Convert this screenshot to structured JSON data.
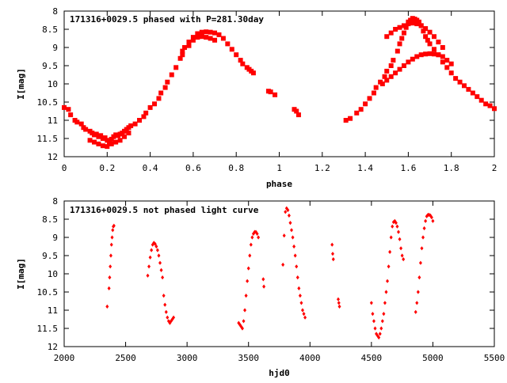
{
  "chart_data": [
    {
      "type": "scatter",
      "title": "171316+0029.5 phased with P=281.30day",
      "xlabel": "phase",
      "ylabel": "I[mag]",
      "xlim": [
        0,
        2
      ],
      "ylim": [
        12,
        8
      ],
      "y_inverted": true,
      "xticks": [
        0,
        0.2,
        0.4,
        0.6,
        0.8,
        1,
        1.2,
        1.4,
        1.6,
        1.8,
        2
      ],
      "xtick_labels": [
        "0",
        "0.2",
        "0.4",
        "0.6",
        "0.8",
        "1",
        "1.2",
        "1.4",
        "1.6",
        "1.8",
        "2"
      ],
      "yticks": [
        8,
        8.5,
        9,
        9.5,
        10,
        10.5,
        11,
        11.5,
        12
      ],
      "ytick_labels": [
        "8",
        "8.5",
        "9",
        "9.5",
        "10",
        "10.5",
        "11",
        "11.5",
        "12"
      ],
      "grid": false,
      "marker": "filled-square",
      "color": "#ff0000",
      "series": [
        {
          "x": [
            0.0,
            0.02,
            0.03,
            0.05,
            0.06,
            0.08,
            0.09,
            0.1,
            0.12,
            0.13,
            0.14,
            0.15,
            0.16,
            0.17,
            0.18,
            0.19,
            0.2,
            0.21,
            0.22,
            0.23,
            0.24,
            0.25,
            0.26,
            0.27,
            0.28,
            0.29,
            0.3,
            0.31,
            0.33,
            0.35,
            0.37,
            0.38,
            0.4,
            0.42,
            0.44,
            0.45,
            0.47,
            0.48,
            0.5,
            0.52,
            0.54,
            0.55,
            0.56,
            0.58,
            0.6,
            0.62,
            0.64,
            0.66,
            0.68,
            0.7,
            0.72,
            0.74,
            0.76,
            0.78,
            0.8,
            0.82,
            0.83,
            0.85,
            0.86,
            0.87,
            0.88,
            0.95,
            0.96,
            0.98,
            1.07,
            1.08,
            1.09,
            1.31,
            1.33,
            1.36,
            1.38,
            1.4,
            1.42,
            1.44,
            1.45,
            1.47,
            1.49,
            1.5,
            1.52,
            1.53,
            1.55,
            1.56,
            1.57,
            1.58,
            1.59,
            1.6,
            1.61,
            1.62,
            1.63,
            1.64,
            1.65,
            1.66,
            1.67,
            1.68,
            1.69,
            1.7,
            1.72,
            1.74,
            1.76,
            1.78,
            1.8,
            1.82,
            1.84,
            1.86,
            1.88,
            1.9,
            1.92,
            1.94,
            1.96,
            1.98,
            2.0
          ],
          "y": [
            10.65,
            10.7,
            10.85,
            11.0,
            11.05,
            11.1,
            11.2,
            11.25,
            11.3,
            11.35,
            11.4,
            11.38,
            11.45,
            11.42,
            11.5,
            11.48,
            11.55,
            11.6,
            11.52,
            11.45,
            11.4,
            11.42,
            11.38,
            11.35,
            11.3,
            11.25,
            11.2,
            11.15,
            11.1,
            11.0,
            10.9,
            10.8,
            10.65,
            10.55,
            10.4,
            10.25,
            10.1,
            9.95,
            9.75,
            9.55,
            9.3,
            9.1,
            9.0,
            8.85,
            8.72,
            8.62,
            8.58,
            8.57,
            8.58,
            8.6,
            8.65,
            8.75,
            8.9,
            9.05,
            9.2,
            9.35,
            9.45,
            9.55,
            9.6,
            9.65,
            9.7,
            10.2,
            10.22,
            10.3,
            10.7,
            10.75,
            10.85,
            11.0,
            10.95,
            10.8,
            10.7,
            10.55,
            10.4,
            10.25,
            10.1,
            9.95,
            9.8,
            9.65,
            9.5,
            9.35,
            9.1,
            8.9,
            8.75,
            8.6,
            8.45,
            8.3,
            8.25,
            8.2,
            8.22,
            8.25,
            8.3,
            8.4,
            8.55,
            8.7,
            8.8,
            8.9,
            9.05,
            9.2,
            9.4,
            9.55,
            9.7,
            9.85,
            9.95,
            10.05,
            10.15,
            10.25,
            10.35,
            10.45,
            10.55,
            10.6,
            10.68
          ]
        },
        {
          "x": [
            0.12,
            0.14,
            0.16,
            0.18,
            0.2,
            0.22,
            0.24,
            0.26,
            0.28,
            0.3,
            0.55,
            0.58,
            0.6,
            0.62,
            0.64,
            0.66,
            0.68,
            0.7,
            1.5,
            1.52,
            1.54,
            1.56,
            1.58,
            1.6,
            1.62,
            1.64,
            1.66,
            1.68,
            1.7,
            1.72,
            1.74,
            1.76
          ],
          "y": [
            11.55,
            11.6,
            11.65,
            11.7,
            11.72,
            11.65,
            11.6,
            11.55,
            11.45,
            11.35,
            9.2,
            8.95,
            8.8,
            8.72,
            8.7,
            8.72,
            8.75,
            8.8,
            8.7,
            8.6,
            8.5,
            8.45,
            8.4,
            8.35,
            8.33,
            8.35,
            8.4,
            8.48,
            8.58,
            8.7,
            8.85,
            9.0
          ]
        },
        {
          "x": [
            1.48,
            1.5,
            1.52,
            1.54,
            1.56,
            1.58,
            1.6,
            1.62,
            1.64,
            1.66,
            1.68,
            1.7,
            1.72,
            1.74,
            1.76,
            1.78,
            1.8
          ],
          "y": [
            10.0,
            9.9,
            9.8,
            9.7,
            9.6,
            9.5,
            9.4,
            9.32,
            9.25,
            9.2,
            9.18,
            9.17,
            9.18,
            9.2,
            9.25,
            9.35,
            9.45
          ]
        }
      ]
    },
    {
      "type": "scatter",
      "title": "171316+0029.5 not phased light curve",
      "xlabel": "hjd0",
      "ylabel": "I[mag]",
      "xlim": [
        2000,
        5500
      ],
      "ylim": [
        12,
        8
      ],
      "y_inverted": true,
      "xticks": [
        2000,
        2500,
        3000,
        3500,
        4000,
        4500,
        5000,
        5500
      ],
      "xtick_labels": [
        "2000",
        "2500",
        "3000",
        "3500",
        "4000",
        "4500",
        "5000",
        "5500"
      ],
      "yticks": [
        8,
        8.5,
        9,
        9.5,
        10,
        10.5,
        11,
        11.5,
        12
      ],
      "ytick_labels": [
        "8",
        "8.5",
        "9",
        "9.5",
        "10",
        "10.5",
        "11",
        "11.5",
        "12"
      ],
      "grid": false,
      "marker": "filled-diamond",
      "color": "#ff0000",
      "series": [
        {
          "x": [
            2350,
            2365,
            2370,
            2375,
            2380,
            2385,
            2390,
            2395,
            2400,
            2405,
            2680,
            2690,
            2700,
            2710,
            2720,
            2730,
            2740,
            2750,
            2760,
            2770,
            2780,
            2790,
            2800,
            2810,
            2820,
            2830,
            2840,
            2850,
            2860,
            2870,
            2880,
            2890,
            3420,
            3430,
            3440,
            3450,
            3460,
            3470,
            3480,
            3490,
            3500,
            3510,
            3520,
            3530,
            3540,
            3550,
            3560,
            3570,
            3580,
            3620,
            3625,
            3780,
            3790,
            3800,
            3810,
            3820,
            3830,
            3840,
            3850,
            3860,
            3870,
            3880,
            3890,
            3900,
            3910,
            3920,
            3930,
            3940,
            3950,
            3960,
            4180,
            4185,
            4190,
            4230,
            4235,
            4240,
            4500,
            4510,
            4520,
            4530,
            4540,
            4550,
            4560,
            4570,
            4580,
            4590,
            4600,
            4610,
            4620,
            4630,
            4640,
            4650,
            4660,
            4670,
            4680,
            4690,
            4700,
            4710,
            4720,
            4730,
            4740,
            4750,
            4760,
            4860,
            4870,
            4880,
            4890,
            4900,
            4910,
            4920,
            4930,
            4940,
            4950,
            4960,
            4970,
            4980,
            4990,
            5000
          ],
          "y": [
            10.9,
            10.4,
            10.1,
            9.8,
            9.5,
            9.2,
            9.0,
            8.8,
            8.7,
            8.68,
            10.05,
            9.8,
            9.55,
            9.35,
            9.2,
            9.15,
            9.18,
            9.25,
            9.35,
            9.5,
            9.7,
            9.9,
            10.1,
            10.6,
            10.85,
            11.05,
            11.2,
            11.3,
            11.35,
            11.3,
            11.25,
            11.2,
            11.35,
            11.4,
            11.45,
            11.5,
            11.3,
            11.0,
            10.6,
            10.2,
            9.85,
            9.5,
            9.2,
            9.0,
            8.9,
            8.85,
            8.85,
            8.9,
            9.0,
            10.15,
            10.35,
            9.75,
            8.95,
            8.3,
            8.2,
            8.25,
            8.4,
            8.6,
            8.8,
            9.0,
            9.25,
            9.5,
            9.8,
            10.1,
            10.4,
            10.6,
            10.8,
            11.0,
            11.1,
            11.2,
            9.2,
            9.45,
            9.6,
            10.7,
            10.8,
            10.9,
            10.8,
            11.1,
            11.3,
            11.5,
            11.65,
            11.7,
            11.75,
            11.65,
            11.5,
            11.3,
            11.1,
            10.8,
            10.5,
            10.2,
            9.8,
            9.4,
            9.0,
            8.7,
            8.58,
            8.55,
            8.6,
            8.7,
            8.85,
            9.05,
            9.3,
            9.5,
            9.6,
            11.05,
            10.8,
            10.5,
            10.1,
            9.7,
            9.3,
            9.0,
            8.75,
            8.55,
            8.42,
            8.38,
            8.38,
            8.4,
            8.45,
            8.55
          ]
        }
      ]
    }
  ]
}
